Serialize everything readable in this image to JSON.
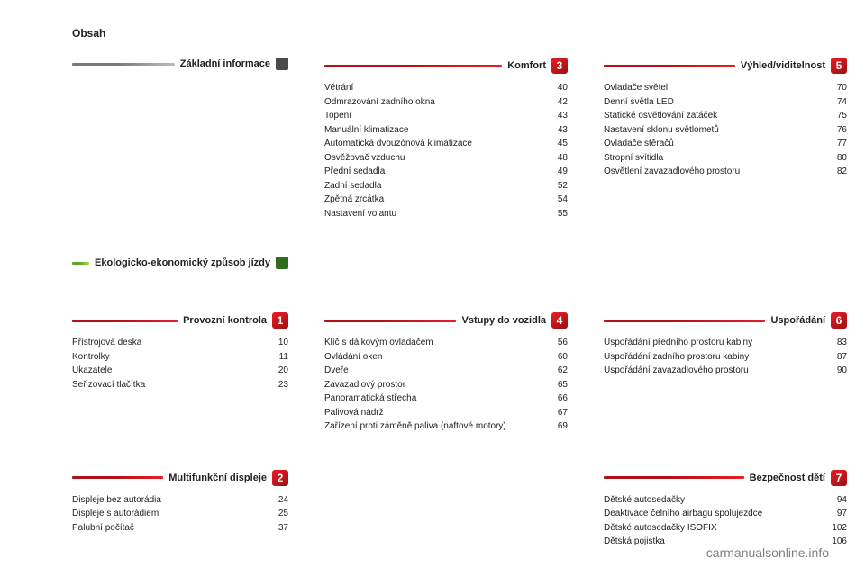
{
  "header": "Obsah",
  "footer": "carmanualsonline.info",
  "style": {
    "numbered_gradient": [
      "#b01217",
      "#ec1c24"
    ],
    "numbered_badge_bg": "#9a1113",
    "numbered_badge_fg": "#ffffff",
    "info_gradient": [
      "#7a7a7a",
      "#bcbcbc"
    ],
    "info_chip": "#4a4a4a",
    "eco_gradient": [
      "#5fa82c",
      "#b7de37"
    ],
    "eco_chip": "#2f6d1d"
  },
  "sections": [
    {
      "key": "basic",
      "kind": "chip",
      "row": 0,
      "col": 0,
      "title": "Základní informace",
      "palette": "info",
      "items": []
    },
    {
      "key": "eco",
      "kind": "chip",
      "row": 1,
      "col": 0,
      "title": "Ekologicko-ekonomický způsob jízdy",
      "palette": "eco",
      "items": []
    },
    {
      "key": "ch1",
      "kind": "num",
      "row": 2,
      "col": 0,
      "num": "1",
      "title": "Provozní kontrola",
      "items": [
        {
          "label": "Přístrojová deska",
          "page": "10"
        },
        {
          "label": "Kontrolky",
          "page": "11"
        },
        {
          "label": "Ukazatele",
          "page": "20"
        },
        {
          "label": "Seřizovací tlačítka",
          "page": "23"
        }
      ]
    },
    {
      "key": "ch2",
      "kind": "num",
      "row": 3,
      "col": 0,
      "num": "2",
      "title": "Multifunkční displeje",
      "items": [
        {
          "label": "Displeje bez autorádia",
          "page": "24"
        },
        {
          "label": "Displeje s autorádiem",
          "page": "25"
        },
        {
          "label": "Palubní počítač",
          "page": "37"
        }
      ]
    },
    {
      "key": "ch3",
      "kind": "num",
      "row": 0,
      "col": 1,
      "num": "3",
      "title": "Komfort",
      "items": [
        {
          "label": "Větrání",
          "page": "40"
        },
        {
          "label": "Odmrazování zadního okna",
          "page": "42"
        },
        {
          "label": "Topení",
          "page": "43"
        },
        {
          "label": "Manuální klimatizace",
          "page": "43"
        },
        {
          "label": "Automatická dvouzónová klimatizace",
          "page": "45"
        },
        {
          "label": "Osvěžovač vzduchu",
          "page": "48"
        },
        {
          "label": "Přední sedadla",
          "page": "49"
        },
        {
          "label": "Zadní sedadla",
          "page": "52"
        },
        {
          "label": "Zpětná zrcátka",
          "page": "54"
        },
        {
          "label": "Nastavení volantu",
          "page": "55"
        }
      ]
    },
    {
      "key": "ch4",
      "kind": "num",
      "row": 2,
      "col": 1,
      "num": "4",
      "title": "Vstupy do vozidla",
      "items": [
        {
          "label": "Klíč s dálkovým ovladačem",
          "page": "56"
        },
        {
          "label": "Ovládání oken",
          "page": "60"
        },
        {
          "label": "Dveře",
          "page": "62"
        },
        {
          "label": "Zavazadlový prostor",
          "page": "65"
        },
        {
          "label": "Panoramatická střecha",
          "page": "66"
        },
        {
          "label": "Palivová nádrž",
          "page": "67"
        },
        {
          "label": "Zařízení proti záměně paliva (naftové motory)",
          "page": "69"
        }
      ]
    },
    {
      "key": "ch5",
      "kind": "num",
      "row": 0,
      "col": 2,
      "num": "5",
      "title": "Výhled/viditelnost",
      "items": [
        {
          "label": "Ovladače světel",
          "page": "70"
        },
        {
          "label": "Denní světla LED",
          "page": "74"
        },
        {
          "label": "Statické osvětlování zatáček",
          "page": "75"
        },
        {
          "label": "Nastavení sklonu světlometů",
          "page": "76"
        },
        {
          "label": "Ovladače stěračů",
          "page": "77"
        },
        {
          "label": "Stropní svítidla",
          "page": "80"
        },
        {
          "label": "Osvětlení zavazadlového prostoru",
          "page": "82"
        }
      ]
    },
    {
      "key": "ch6",
      "kind": "num",
      "row": 2,
      "col": 2,
      "num": "6",
      "title": "Uspořádání",
      "items": [
        {
          "label": "Uspořádání předního prostoru kabiny",
          "page": "83"
        },
        {
          "label": "Uspořádání zadního prostoru kabiny",
          "page": "87"
        },
        {
          "label": "Uspořádání zavazadlového prostoru",
          "page": "90"
        }
      ]
    },
    {
      "key": "ch7",
      "kind": "num",
      "row": 3,
      "col": 2,
      "num": "7",
      "title": "Bezpečnost dětí",
      "items": [
        {
          "label": "Dětské autosedačky",
          "page": "94"
        },
        {
          "label": "Deaktivace čelního airbagu spolujezdce",
          "page": "97"
        },
        {
          "label": "Dětské autosedačky ISOFIX",
          "page": "102"
        },
        {
          "label": "Dětská pojistka",
          "page": "106"
        }
      ]
    }
  ]
}
